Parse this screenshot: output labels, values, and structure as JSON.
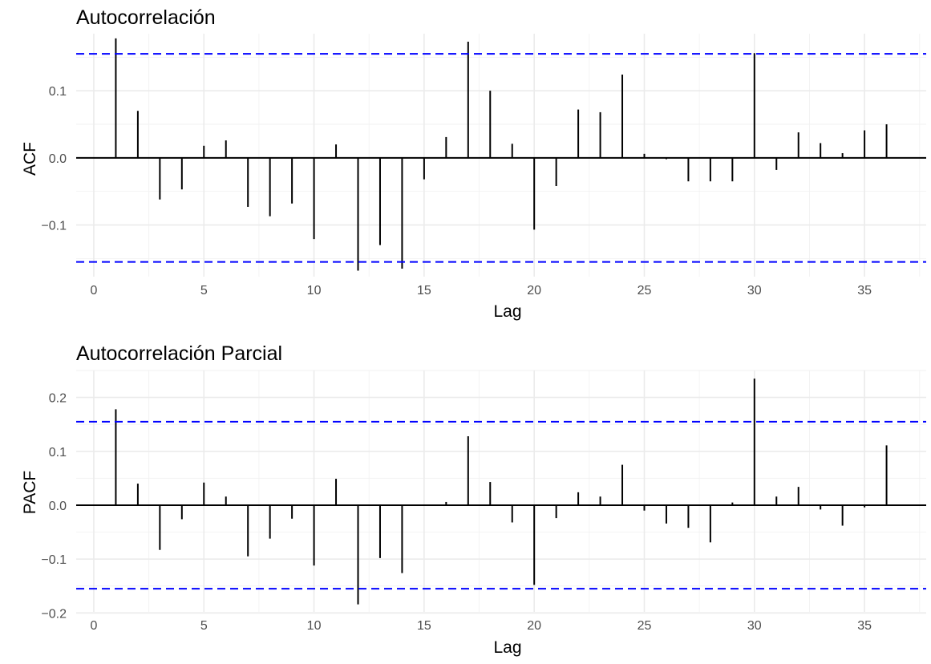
{
  "chart_data": [
    {
      "type": "bar",
      "title": "Autocorrelación",
      "xlabel": "Lag",
      "ylabel": "ACF",
      "xlim": [
        -0.8,
        37.8
      ],
      "ylim": [
        -0.177,
        0.185
      ],
      "x_ticks": [
        0,
        5,
        10,
        15,
        20,
        25,
        30,
        35
      ],
      "y_ticks": [
        -0.1,
        0.0,
        0.1
      ],
      "y_tick_labels": [
        "−0.1",
        "0.0",
        "0.1"
      ],
      "confidence_bounds": [
        0.155,
        -0.155
      ],
      "grid": true,
      "legend": "none",
      "colors": {
        "bars": "#000000",
        "bounds": "#0000ff",
        "grid": "#ebebeb"
      },
      "x": [
        1,
        2,
        3,
        4,
        5,
        6,
        7,
        8,
        9,
        10,
        11,
        12,
        13,
        14,
        15,
        16,
        17,
        18,
        19,
        20,
        21,
        22,
        23,
        24,
        25,
        26,
        27,
        28,
        29,
        30,
        31,
        32,
        33,
        34,
        35,
        36
      ],
      "values": [
        0.178,
        0.07,
        -0.062,
        -0.047,
        0.018,
        0.026,
        -0.073,
        -0.087,
        -0.068,
        -0.121,
        0.02,
        -0.168,
        -0.13,
        -0.165,
        -0.032,
        0.031,
        0.173,
        0.1,
        0.021,
        -0.107,
        -0.042,
        0.072,
        0.068,
        0.124,
        0.006,
        -0.002,
        -0.035,
        -0.035,
        -0.035,
        0.156,
        -0.018,
        0.038,
        0.022,
        0.007,
        0.041,
        0.05
      ]
    },
    {
      "type": "bar",
      "title": "Autocorrelación Parcial",
      "xlabel": "Lag",
      "ylabel": "PACF",
      "xlim": [
        -0.8,
        37.8
      ],
      "ylim": [
        -0.198,
        0.25
      ],
      "x_ticks": [
        0,
        5,
        10,
        15,
        20,
        25,
        30,
        35
      ],
      "y_ticks": [
        -0.2,
        -0.1,
        0.0,
        0.1,
        0.2
      ],
      "y_tick_labels": [
        "−0.2",
        "−0.1",
        "0.0",
        "0.1",
        "0.2"
      ],
      "confidence_bounds": [
        0.155,
        -0.155
      ],
      "grid": true,
      "legend": "none",
      "colors": {
        "bars": "#000000",
        "bounds": "#0000ff",
        "grid": "#ebebeb"
      },
      "x": [
        1,
        2,
        3,
        4,
        5,
        6,
        7,
        8,
        9,
        10,
        11,
        12,
        13,
        14,
        15,
        16,
        17,
        18,
        19,
        20,
        21,
        22,
        23,
        24,
        25,
        26,
        27,
        28,
        29,
        30,
        31,
        32,
        33,
        34,
        35,
        36
      ],
      "values": [
        0.178,
        0.04,
        -0.083,
        -0.026,
        0.042,
        0.016,
        -0.095,
        -0.062,
        -0.025,
        -0.112,
        0.049,
        -0.184,
        -0.098,
        -0.126,
        0.0,
        0.006,
        0.128,
        0.043,
        -0.032,
        -0.148,
        -0.024,
        0.024,
        0.016,
        0.075,
        -0.01,
        -0.034,
        -0.042,
        -0.069,
        0.005,
        0.235,
        0.016,
        0.034,
        -0.008,
        -0.038,
        -0.004,
        0.111
      ]
    }
  ]
}
